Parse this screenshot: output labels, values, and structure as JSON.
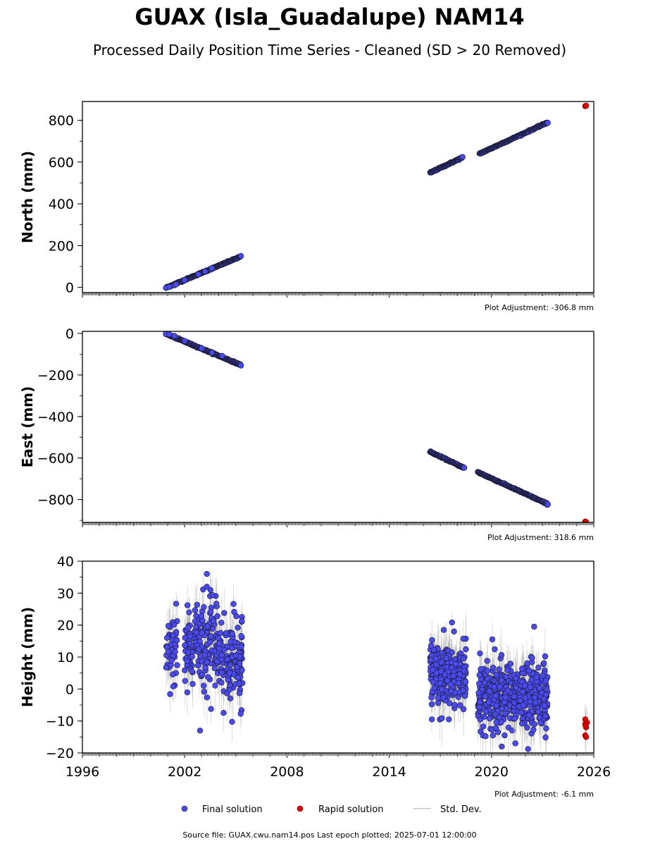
{
  "title": "GUAX (Isla_Guadalupe) NAM14",
  "subtitle": "Processed Daily Position Time Series - Cleaned (SD > 20 Removed)",
  "footer": "Source file: GUAX.cwu.nam14.pos  Last epoch plotted: 2025-07-01 12:00:00",
  "legend": {
    "final": "Final solution",
    "rapid": "Rapid solution",
    "std": "Std. Dev."
  },
  "colors": {
    "final": "#4a4aef",
    "final_edge": "#1a1a2e",
    "rapid": "#e00000",
    "std": "#a0a0a0"
  },
  "chart_data": [
    {
      "type": "scatter",
      "ylabel": "North (mm)",
      "annotation": "Plot Adjustment: -306.8 mm",
      "xlim": [
        1996,
        2026
      ],
      "ylim": [
        -25,
        890
      ],
      "yticks": [
        0,
        200,
        400,
        600,
        800
      ],
      "xticks": [],
      "series": [
        {
          "name": "Final solution",
          "segments": [
            {
              "x0": 2000.9,
              "x1": 2005.3,
              "y0": -2,
              "y1": 148
            },
            {
              "x0": 2016.4,
              "x1": 2018.3,
              "y0": 549,
              "y1": 622
            },
            {
              "x0": 2019.3,
              "x1": 2023.3,
              "y0": 640,
              "y1": 790
            }
          ],
          "points": [
            [
              2000.9,
              -2
            ],
            [
              2001.1,
              2
            ],
            [
              2001.4,
              10
            ],
            [
              2001.5,
              14
            ],
            [
              2002.0,
              34
            ],
            [
              2002.8,
              62
            ],
            [
              2003.2,
              76
            ],
            [
              2003.6,
              92
            ]
          ]
        },
        {
          "name": "Rapid solution",
          "points": [
            [
              2025.5,
              868
            ],
            [
              2025.55,
              870
            ]
          ]
        }
      ]
    },
    {
      "type": "scatter",
      "ylabel": "East (mm)",
      "annotation": "Plot Adjustment: 318.6 mm",
      "xlim": [
        1996,
        2026
      ],
      "ylim": [
        -910,
        10
      ],
      "yticks": [
        0,
        -200,
        -400,
        -600,
        -800
      ],
      "xticks": [],
      "series": [
        {
          "name": "Final solution",
          "segments": [
            {
              "x0": 2000.9,
              "x1": 2005.3,
              "y0": -2,
              "y1": -152
            },
            {
              "x0": 2016.4,
              "x1": 2018.4,
              "y0": -570,
              "y1": -648
            },
            {
              "x0": 2019.2,
              "x1": 2023.3,
              "y0": -668,
              "y1": -822
            }
          ],
          "points": [
            [
              2000.9,
              -2
            ],
            [
              2001.1,
              -4
            ],
            [
              2001.4,
              -12
            ],
            [
              2002.0,
              -36
            ],
            [
              2003.0,
              -72
            ],
            [
              2003.6,
              -92
            ],
            [
              2004.2,
              -108
            ]
          ]
        },
        {
          "name": "Rapid solution",
          "points": [
            [
              2025.5,
              -906
            ],
            [
              2025.55,
              -908
            ]
          ]
        }
      ]
    },
    {
      "type": "scatter",
      "ylabel": "Height (mm)",
      "annotation": "Plot Adjustment: -6.1 mm",
      "xlim": [
        1996,
        2026
      ],
      "ylim": [
        -20,
        40
      ],
      "yticks": [
        -20,
        -10,
        0,
        10,
        20,
        30,
        40
      ],
      "xticks": [
        1996,
        2002,
        2008,
        2014,
        2020,
        2026
      ],
      "series": [
        {
          "name": "Final solution",
          "clusters": [
            {
              "x0": 2000.9,
              "x1": 2001.6,
              "mean": 12,
              "spread": 8,
              "n": 45
            },
            {
              "x0": 2002.0,
              "x1": 2003.9,
              "mean": 13,
              "spread": 9,
              "n": 170
            },
            {
              "x0": 2003.9,
              "x1": 2005.4,
              "mean": 10,
              "spread": 8,
              "n": 150
            },
            {
              "x0": 2016.4,
              "x1": 2018.5,
              "mean": 5,
              "spread": 6,
              "n": 300
            },
            {
              "x0": 2019.2,
              "x1": 2021.3,
              "mean": -2,
              "spread": 7,
              "n": 260
            },
            {
              "x0": 2021.3,
              "x1": 2023.3,
              "mean": -3,
              "spread": 7,
              "n": 250
            }
          ],
          "points": [
            [
              2003.3,
              36
            ],
            [
              2003.3,
              32
            ],
            [
              2002.9,
              -13
            ],
            [
              2017.2,
              18.5
            ],
            [
              2017.8,
              18
            ],
            [
              2022.5,
              19.5
            ],
            [
              2016.5,
              -9.5
            ],
            [
              2017.5,
              -9.5
            ],
            [
              2020.6,
              -18
            ],
            [
              2021.4,
              -17
            ]
          ]
        },
        {
          "name": "Rapid solution",
          "points": [
            [
              2025.5,
              -9.5
            ],
            [
              2025.5,
              -11
            ],
            [
              2025.55,
              -12
            ],
            [
              2025.5,
              -14.5
            ],
            [
              2025.55,
              -15
            ],
            [
              2025.6,
              -10.5
            ],
            [
              2025.52,
              -11.5
            ]
          ]
        }
      ]
    }
  ]
}
